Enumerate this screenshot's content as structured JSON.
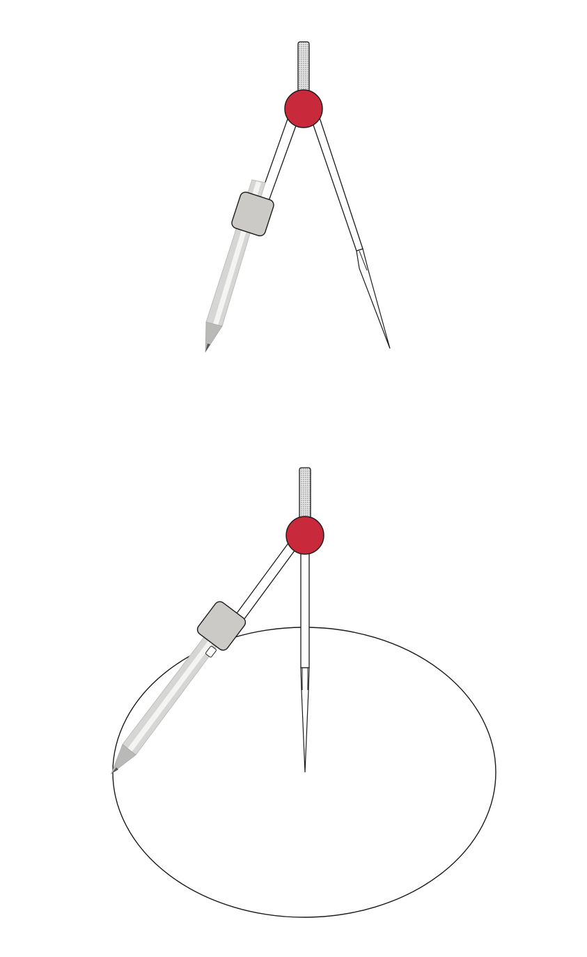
{
  "figures": [
    {
      "name": "compass-closed",
      "icons": [
        "knurled-grip-icon",
        "hinge-knob-icon",
        "pencil-icon",
        "needle-point-icon"
      ]
    },
    {
      "name": "compass-drawing-circle",
      "icons": [
        "knurled-grip-icon",
        "hinge-knob-icon",
        "pencil-icon",
        "needle-point-icon",
        "circle-outline"
      ]
    }
  ],
  "colors": {
    "background": "#ffffff",
    "outline": "#1a1a1a",
    "hinge": "#c8293b",
    "clamp": "#cbcac6",
    "pencil": "#d6d6d4",
    "pencil_light": "#f4f4f2",
    "pencil_lead": "#555555",
    "grip": "#d9d9d9"
  }
}
